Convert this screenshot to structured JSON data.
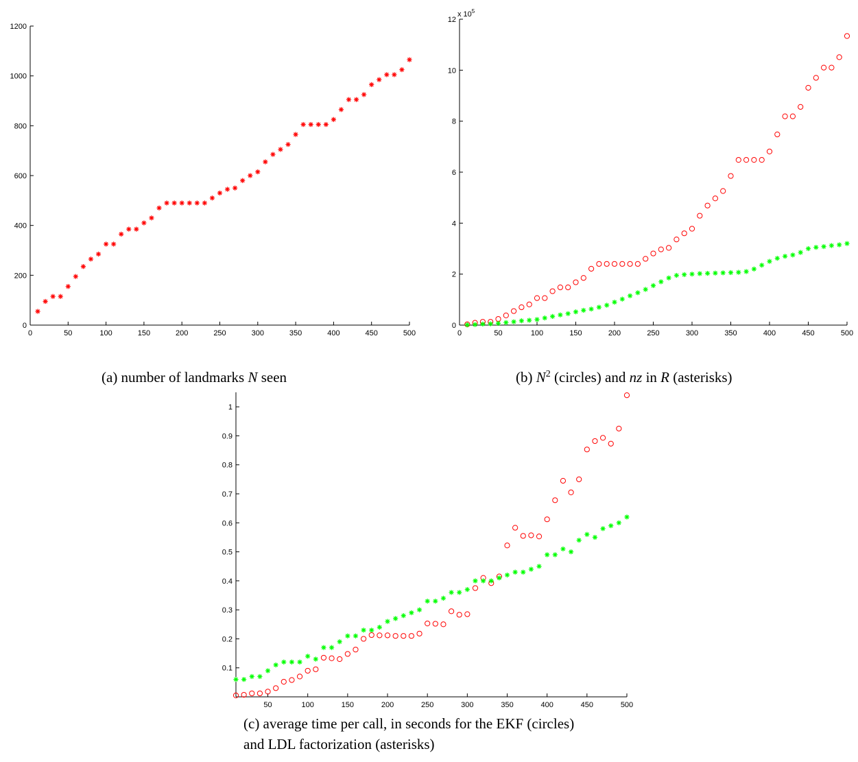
{
  "chart_data": [
    {
      "type": "scatter",
      "id": "a",
      "xlim": [
        0,
        500
      ],
      "ylim": [
        0,
        1200
      ],
      "xticks": [
        "0",
        "50",
        "100",
        "150",
        "200",
        "250",
        "300",
        "350",
        "400",
        "450",
        "500"
      ],
      "yticks": [
        "0",
        "200",
        "400",
        "600",
        "800",
        "1000",
        "1200"
      ],
      "series": [
        {
          "marker": "asterisk",
          "color": "#ff0000",
          "x": [
            10,
            20,
            30,
            40,
            50,
            60,
            70,
            80,
            90,
            100,
            110,
            120,
            130,
            140,
            150,
            160,
            170,
            180,
            190,
            200,
            210,
            220,
            230,
            240,
            250,
            260,
            270,
            280,
            290,
            300,
            310,
            320,
            330,
            340,
            350,
            360,
            370,
            380,
            390,
            400,
            410,
            420,
            430,
            440,
            450,
            460,
            470,
            480,
            490,
            500
          ],
          "y": [
            55,
            95,
            115,
            115,
            155,
            195,
            235,
            265,
            285,
            325,
            325,
            365,
            385,
            385,
            410,
            430,
            470,
            490,
            490,
            490,
            490,
            490,
            490,
            510,
            530,
            545,
            550,
            580,
            600,
            615,
            655,
            685,
            705,
            725,
            765,
            805,
            805,
            805,
            805,
            825,
            865,
            905,
            905,
            925,
            965,
            985,
            1005,
            1005,
            1025,
            1065
          ]
        }
      ],
      "caption": {
        "prefix": "(a)  number of landmarks ",
        "var": "N",
        "suffix": " seen"
      }
    },
    {
      "type": "scatter",
      "id": "b",
      "xlim": [
        0,
        500
      ],
      "ylim": [
        0,
        12
      ],
      "xticks": [
        "0",
        "50",
        "100",
        "150",
        "200",
        "250",
        "300",
        "350",
        "400",
        "450",
        "500"
      ],
      "yticks": [
        "0",
        "2",
        "4",
        "6",
        "8",
        "10",
        "12"
      ],
      "multiplier": {
        "base": "x 10",
        "exp": "5"
      },
      "series": [
        {
          "marker": "circle",
          "color": "#ff0000",
          "x": [
            10,
            20,
            30,
            40,
            50,
            60,
            70,
            80,
            90,
            100,
            110,
            120,
            130,
            140,
            150,
            160,
            170,
            180,
            190,
            200,
            210,
            220,
            230,
            240,
            250,
            260,
            270,
            280,
            290,
            300,
            310,
            320,
            330,
            340,
            350,
            360,
            370,
            380,
            390,
            400,
            410,
            420,
            430,
            440,
            450,
            460,
            470,
            480,
            490,
            500
          ],
          "y": [
            0.03,
            0.09,
            0.13,
            0.13,
            0.24,
            0.38,
            0.55,
            0.7,
            0.81,
            1.06,
            1.06,
            1.33,
            1.48,
            1.48,
            1.68,
            1.85,
            2.21,
            2.4,
            2.4,
            2.4,
            2.4,
            2.4,
            2.4,
            2.6,
            2.81,
            2.97,
            3.03,
            3.36,
            3.6,
            3.78,
            4.29,
            4.69,
            4.97,
            5.26,
            5.85,
            6.48,
            6.48,
            6.48,
            6.48,
            6.81,
            7.48,
            8.19,
            8.19,
            8.56,
            9.31,
            9.7,
            10.1,
            10.1,
            10.51,
            11.34
          ]
        },
        {
          "marker": "asterisk",
          "color": "#00ff00",
          "x": [
            10,
            20,
            30,
            40,
            50,
            60,
            70,
            80,
            90,
            100,
            110,
            120,
            130,
            140,
            150,
            160,
            170,
            180,
            190,
            200,
            210,
            220,
            230,
            240,
            250,
            260,
            270,
            280,
            290,
            300,
            310,
            320,
            330,
            340,
            350,
            360,
            370,
            380,
            390,
            400,
            410,
            420,
            430,
            440,
            450,
            460,
            470,
            480,
            490,
            500
          ],
          "y": [
            0.01,
            0.02,
            0.04,
            0.05,
            0.07,
            0.1,
            0.13,
            0.17,
            0.19,
            0.22,
            0.28,
            0.34,
            0.4,
            0.45,
            0.52,
            0.58,
            0.63,
            0.7,
            0.78,
            0.9,
            1.02,
            1.15,
            1.27,
            1.4,
            1.55,
            1.7,
            1.85,
            1.95,
            1.98,
            2.0,
            2.02,
            2.03,
            2.04,
            2.05,
            2.06,
            2.07,
            2.1,
            2.2,
            2.35,
            2.5,
            2.62,
            2.7,
            2.75,
            2.85,
            3.0,
            3.05,
            3.08,
            3.12,
            3.15,
            3.2
          ]
        }
      ],
      "caption": {
        "prefix": "(b)  ",
        "var": "N",
        "sup": "2",
        "middle": " (circles) and ",
        "var2": "nz",
        "middle2": " in ",
        "var3": "R",
        "suffix": " (asterisks)"
      }
    },
    {
      "type": "scatter",
      "id": "c",
      "xlim": [
        10,
        500
      ],
      "ylim": [
        0,
        1.05
      ],
      "xticks": [
        "50",
        "100",
        "150",
        "200",
        "250",
        "300",
        "350",
        "400",
        "450",
        "500"
      ],
      "yticks": [
        "0.1",
        "0.2",
        "0.3",
        "0.4",
        "0.5",
        "0.6",
        "0.7",
        "0.8",
        "0.9",
        "1"
      ],
      "series": [
        {
          "marker": "circle",
          "color": "#ff0000",
          "x": [
            10,
            20,
            30,
            40,
            50,
            60,
            70,
            80,
            90,
            100,
            110,
            120,
            130,
            140,
            150,
            160,
            170,
            180,
            190,
            200,
            210,
            220,
            230,
            240,
            250,
            260,
            270,
            280,
            290,
            300,
            310,
            320,
            330,
            340,
            350,
            360,
            370,
            380,
            390,
            400,
            410,
            420,
            430,
            440,
            450,
            460,
            470,
            480,
            490,
            500
          ],
          "y": [
            0.005,
            0.007,
            0.012,
            0.012,
            0.018,
            0.03,
            0.052,
            0.058,
            0.07,
            0.09,
            0.095,
            0.135,
            0.133,
            0.13,
            0.148,
            0.163,
            0.2,
            0.213,
            0.212,
            0.212,
            0.21,
            0.21,
            0.21,
            0.218,
            0.253,
            0.252,
            0.25,
            0.295,
            0.283,
            0.285,
            0.375,
            0.41,
            0.392,
            0.415,
            0.522,
            0.583,
            0.555,
            0.557,
            0.553,
            0.612,
            0.678,
            0.745,
            0.705,
            0.75,
            0.853,
            0.882,
            0.893,
            0.873,
            0.925,
            1.04
          ]
        },
        {
          "marker": "asterisk",
          "color": "#00ff00",
          "x": [
            10,
            20,
            30,
            40,
            50,
            60,
            70,
            80,
            90,
            100,
            110,
            120,
            130,
            140,
            150,
            160,
            170,
            180,
            190,
            200,
            210,
            220,
            230,
            240,
            250,
            260,
            270,
            280,
            290,
            300,
            310,
            320,
            330,
            340,
            350,
            360,
            370,
            380,
            390,
            400,
            410,
            420,
            430,
            440,
            450,
            460,
            470,
            480,
            490,
            500
          ],
          "y": [
            0.06,
            0.06,
            0.07,
            0.07,
            0.09,
            0.11,
            0.12,
            0.12,
            0.12,
            0.14,
            0.13,
            0.17,
            0.17,
            0.19,
            0.21,
            0.21,
            0.23,
            0.23,
            0.24,
            0.26,
            0.27,
            0.28,
            0.29,
            0.3,
            0.33,
            0.33,
            0.34,
            0.36,
            0.36,
            0.37,
            0.4,
            0.4,
            0.4,
            0.41,
            0.42,
            0.43,
            0.43,
            0.44,
            0.45,
            0.49,
            0.49,
            0.51,
            0.5,
            0.54,
            0.56,
            0.55,
            0.58,
            0.59,
            0.6,
            0.62
          ]
        }
      ],
      "caption": {
        "line1": "(c)  average time per call, in seconds for the EKF (circles)",
        "line2": "and LDL factorization (asterisks)"
      }
    }
  ]
}
